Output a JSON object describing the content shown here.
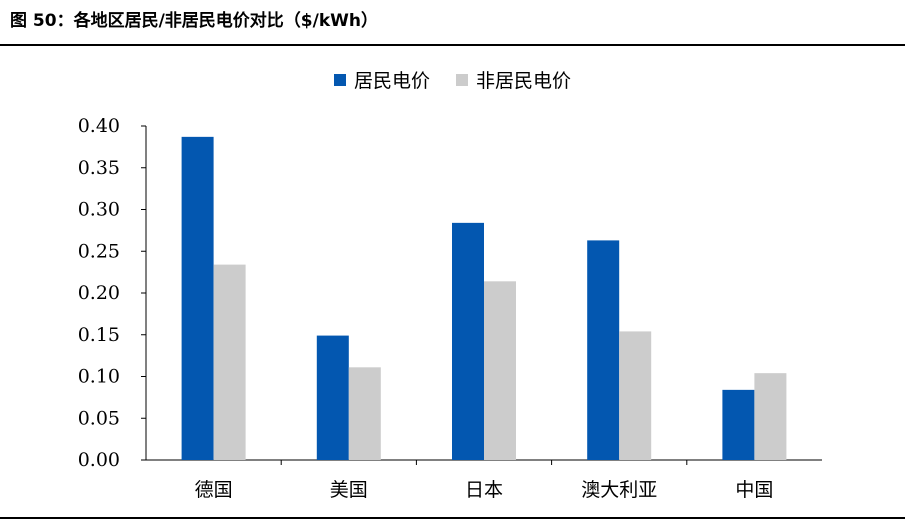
{
  "figure": {
    "title": "图 50：各地区居民/非居民电价对比（$/kWh）"
  },
  "colors": {
    "residential": "#0357B0",
    "non_residential": "#CCCCCC"
  },
  "chart_data": {
    "type": "bar",
    "categories": [
      "德国",
      "美国",
      "日本",
      "澳大利亚",
      "中国"
    ],
    "series": [
      {
        "name": "居民电价",
        "values": [
          0.387,
          0.149,
          0.284,
          0.263,
          0.084
        ]
      },
      {
        "name": "非居民电价",
        "values": [
          0.234,
          0.111,
          0.214,
          0.154,
          0.104
        ]
      }
    ],
    "yticks": [
      "0.00",
      "0.05",
      "0.10",
      "0.15",
      "0.20",
      "0.25",
      "0.30",
      "0.35",
      "0.40"
    ],
    "ylim": [
      0,
      0.4
    ],
    "xlabel": "",
    "ylabel": "",
    "legend_position": "top-center",
    "grid": false
  }
}
